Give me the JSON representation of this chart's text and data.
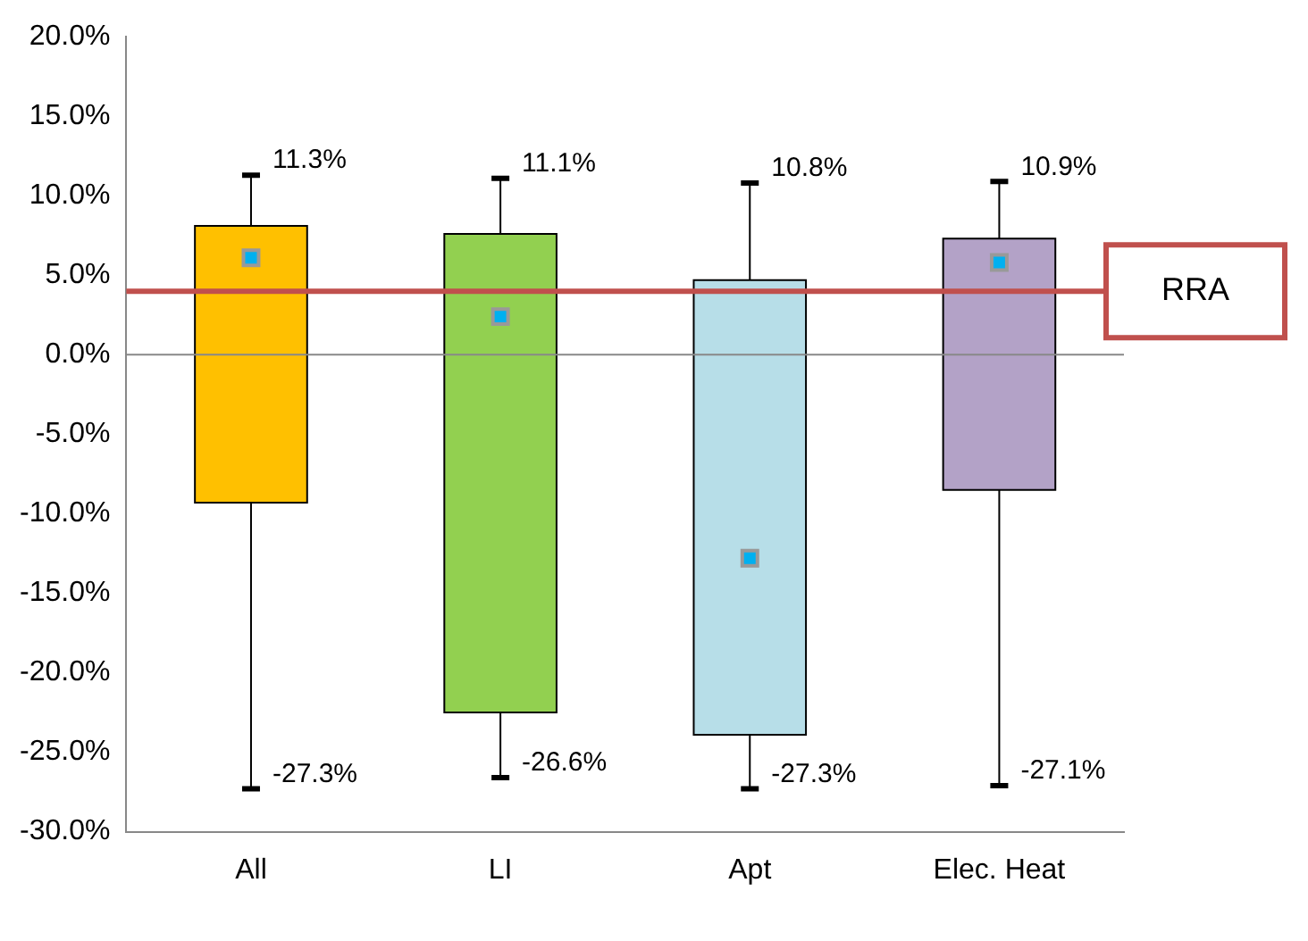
{
  "chart_data": {
    "type": "box",
    "categories": [
      "All",
      "LI",
      "Apt",
      "Elec. Heat"
    ],
    "colors": [
      "#ffc000",
      "#92d050",
      "#b7dee8",
      "#b3a2c7"
    ],
    "boxes": [
      {
        "low": -27.3,
        "q1": -9.3,
        "median": 6.1,
        "q3": 8.1,
        "high": 11.3
      },
      {
        "low": -26.6,
        "q1": -22.5,
        "median": 2.4,
        "q3": 7.6,
        "high": 11.1
      },
      {
        "low": -27.3,
        "q1": -23.9,
        "median": -12.8,
        "q3": 4.7,
        "high": 10.8
      },
      {
        "low": -27.1,
        "q1": -8.5,
        "median": 5.8,
        "q3": 7.3,
        "high": 10.9
      }
    ],
    "marker": "square",
    "ylim": [
      -30,
      20
    ],
    "yticks": [
      {
        "value": -30,
        "label": "-30.0%"
      },
      {
        "value": -25,
        "label": "-25.0%"
      },
      {
        "value": -20,
        "label": "-20.0%"
      },
      {
        "value": -15,
        "label": "-15.0%"
      },
      {
        "value": -10,
        "label": "-10.0%"
      },
      {
        "value": -5,
        "label": "-5.0%"
      },
      {
        "value": 0,
        "label": "0.0%"
      },
      {
        "value": 5,
        "label": "5.0%"
      },
      {
        "value": 10,
        "label": "10.0%"
      },
      {
        "value": 15,
        "label": "15.0%"
      },
      {
        "value": 20,
        "label": "20.0%"
      }
    ],
    "ref_lines": [
      {
        "axis": "y",
        "value": 0,
        "color": "#888888"
      },
      {
        "axis": "y",
        "value": 4.0,
        "label": "RRA",
        "color": "#c0504d"
      }
    ],
    "annotations": [
      {
        "text": "11.3%",
        "x": "All",
        "y": 11.3
      },
      {
        "text": "-27.3%",
        "x": "All",
        "y": -27.3
      },
      {
        "text": "11.1%",
        "x": "LI",
        "y": 11.1
      },
      {
        "text": "-26.6%",
        "x": "LI",
        "y": -26.6
      },
      {
        "text": "10.8%",
        "x": "Apt",
        "y": 10.8
      },
      {
        "text": "-27.3%",
        "x": "Apt",
        "y": -27.3
      },
      {
        "text": "10.9%",
        "x": "Elec. Heat",
        "y": 10.9
      },
      {
        "text": "-27.1%",
        "x": "Elec. Heat",
        "y": -27.1
      }
    ],
    "grid": false,
    "legend": false
  }
}
